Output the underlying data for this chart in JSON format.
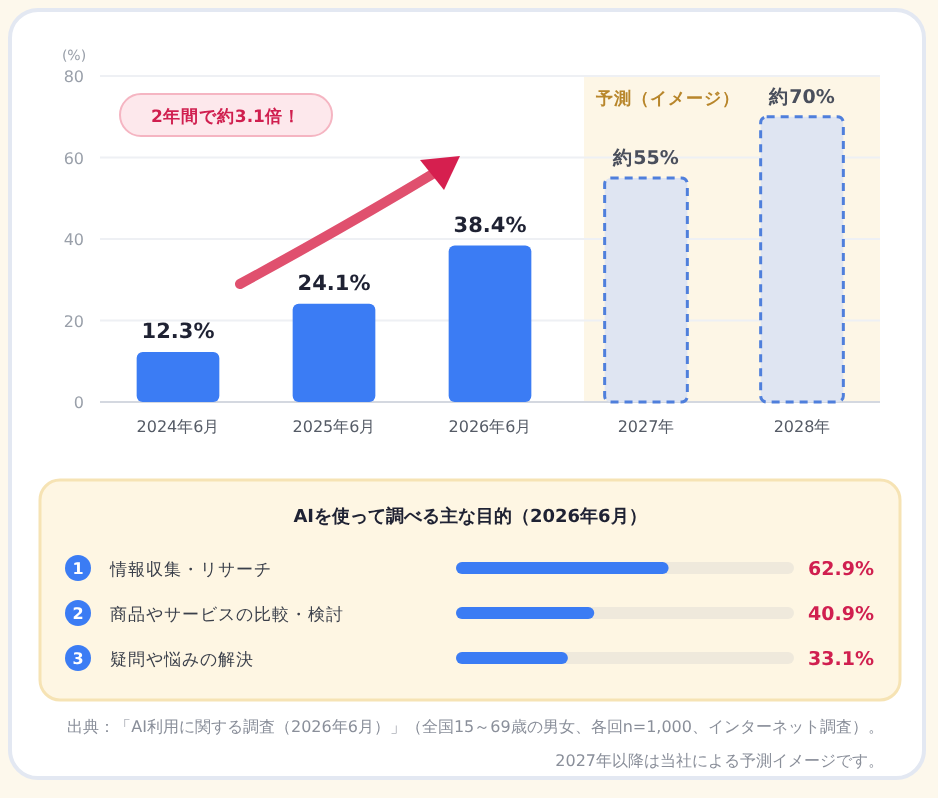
{
  "chart_data": [
    {
      "type": "bar",
      "ylabel": "(%)",
      "categories": [
        "2024年6月",
        "2025年6月",
        "2026年6月",
        "2027年",
        "2028年"
      ],
      "series": [
        {
          "color": "#3b7cf4",
          "values": [
            12.3,
            24.1,
            38.4,
            null,
            null
          ],
          "value_labels": [
            "12.3%",
            "24.1%",
            "38.4%",
            null,
            null
          ]
        },
        {
          "color": "#dfe5f2",
          "line_style": "dashed",
          "values": [
            null,
            null,
            null,
            55,
            70
          ],
          "value_labels": [
            null,
            null,
            null,
            "約55%",
            "約70%"
          ]
        }
      ],
      "ylim": [
        0,
        80
      ],
      "yticks": [
        0,
        20,
        40,
        60,
        80
      ],
      "grid": "y",
      "bands": [
        {
          "axis": "x",
          "from": "2027年",
          "to": "2028年",
          "label": "予測（イメージ）",
          "color": "#fdf6e6"
        }
      ],
      "annotations": [
        "2年間で約3.1倍！"
      ]
    },
    {
      "type": "bar",
      "orientation": "horizontal",
      "title": "AIを使って調べる主な目的（2026年6月）",
      "categories": [
        "情報収集・リサーチ",
        "商品やサービスの比較・検討",
        "疑問や悩みの解決"
      ],
      "values": [
        62.9,
        40.9,
        33.1
      ],
      "color": "#3b7cf4",
      "value_labels": [
        "62.9%",
        "40.9%",
        "33.1%"
      ],
      "xlim": [
        0,
        100
      ],
      "tick_labels": "y",
      "annotations": [
        "1",
        "2",
        "3",
        "出典：「AI利用に関する調査（2026年6月）」（全国15～69歳の男女、各回n=1,000、インターネット調査）。2027年以降は当社による予測イメージです。"
      ]
    }
  ]
}
